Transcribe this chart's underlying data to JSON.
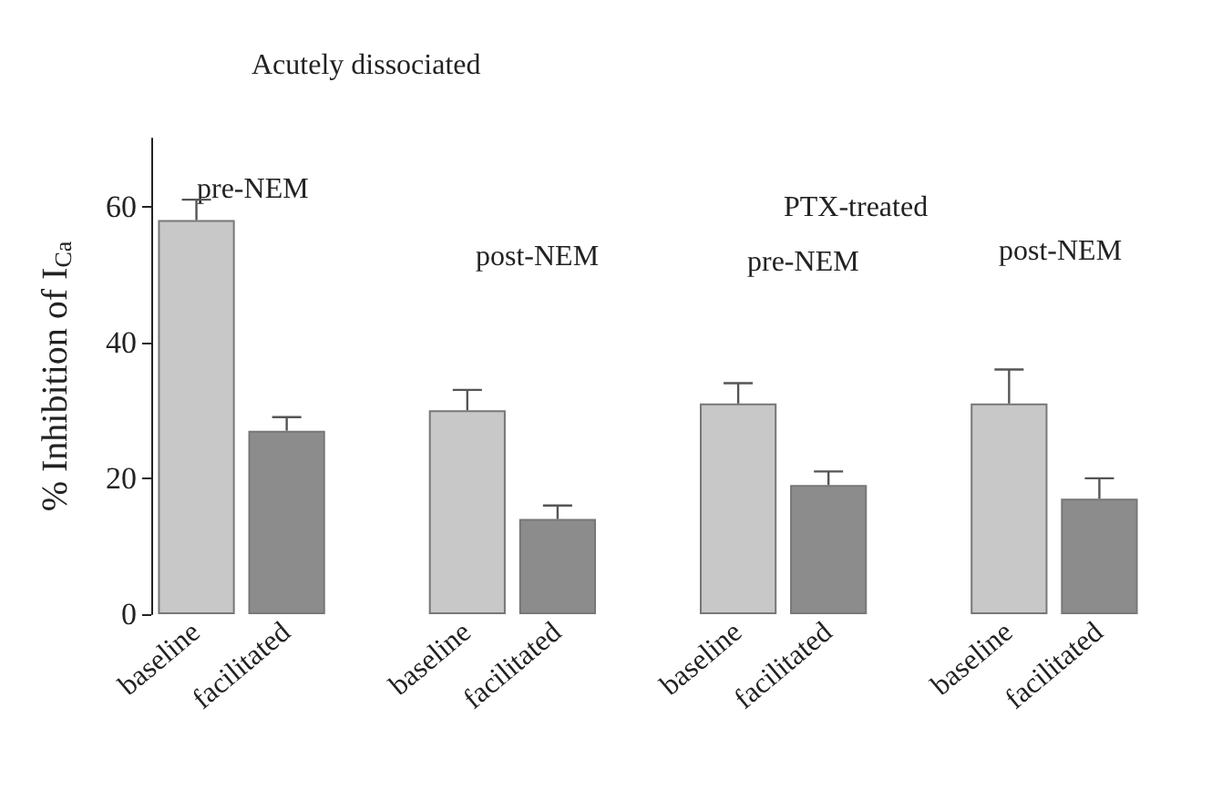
{
  "chart_data": {
    "type": "bar",
    "ylabel": "% Inhibition of I$_{Ca}$",
    "categories": [
      "baseline",
      "facilitated",
      null,
      "baseline",
      "facilitated",
      null,
      "baseline",
      "facilitated",
      null,
      "baseline",
      "facilitated"
    ],
    "values": [
      58,
      27,
      null,
      30,
      14,
      null,
      31,
      19,
      null,
      31,
      17
    ],
    "colors": [
      "#c8c8c8",
      "#8c8c8c",
      null,
      "#c8c8c8",
      "#8c8c8c",
      null,
      "#c8c8c8",
      "#8c8c8c",
      null,
      "#c8c8c8",
      "#8c8c8c"
    ],
    "errors": [
      [
        58,
        61
      ],
      [
        27,
        29
      ],
      null,
      [
        30,
        33
      ],
      [
        14,
        16
      ],
      null,
      [
        31,
        34
      ],
      [
        19,
        21
      ],
      null,
      [
        31,
        36
      ],
      [
        17,
        20
      ]
    ],
    "ylim": [
      0,
      70
    ],
    "yticks": [
      0,
      20,
      40,
      60
    ],
    "grid": false,
    "annotations": [
      "Acutely dissociated",
      "pre-NEM",
      "post-NEM",
      "PTX-treated",
      "pre-NEM",
      "post-NEM"
    ]
  }
}
